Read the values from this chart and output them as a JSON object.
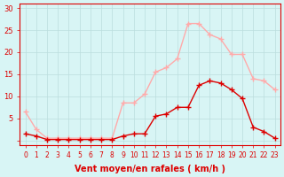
{
  "x_values": [
    0,
    1,
    2,
    3,
    4,
    5,
    6,
    7,
    8,
    9,
    10,
    11,
    12,
    13,
    14,
    15,
    16,
    17,
    18,
    19,
    20,
    21,
    22,
    23
  ],
  "rafales": [
    6.5,
    2.5,
    0.5,
    0.5,
    0.5,
    0.5,
    0.5,
    0.5,
    0.5,
    8.5,
    8.5,
    10.5,
    15.5,
    16.5,
    18.5,
    26.5,
    26.5,
    24.0,
    23.0,
    19.5,
    19.5,
    14.0,
    13.5,
    11.5
  ],
  "vent_moyen": [
    1.5,
    1.0,
    0.2,
    0.2,
    0.2,
    0.2,
    0.2,
    0.2,
    0.2,
    1.0,
    1.5,
    1.5,
    5.5,
    6.0,
    7.5,
    7.5,
    12.5,
    13.5,
    13.0,
    11.5,
    9.5,
    3.0,
    2.0,
    0.5
  ],
  "rafales_color": "#ffaaaa",
  "vent_color": "#dd0000",
  "background_color": "#d8f5f5",
  "grid_color": "#bbdddd",
  "xlabel": "Vent moyen/en rafales ( km/h )",
  "xlabel_color": "#dd0000",
  "ylabel_ticks": [
    0,
    5,
    10,
    15,
    20,
    25,
    30
  ],
  "xlim": [
    -0.5,
    23.5
  ],
  "ylim": [
    -1,
    31
  ],
  "tick_color": "#dd0000",
  "spine_color": "#dd0000"
}
